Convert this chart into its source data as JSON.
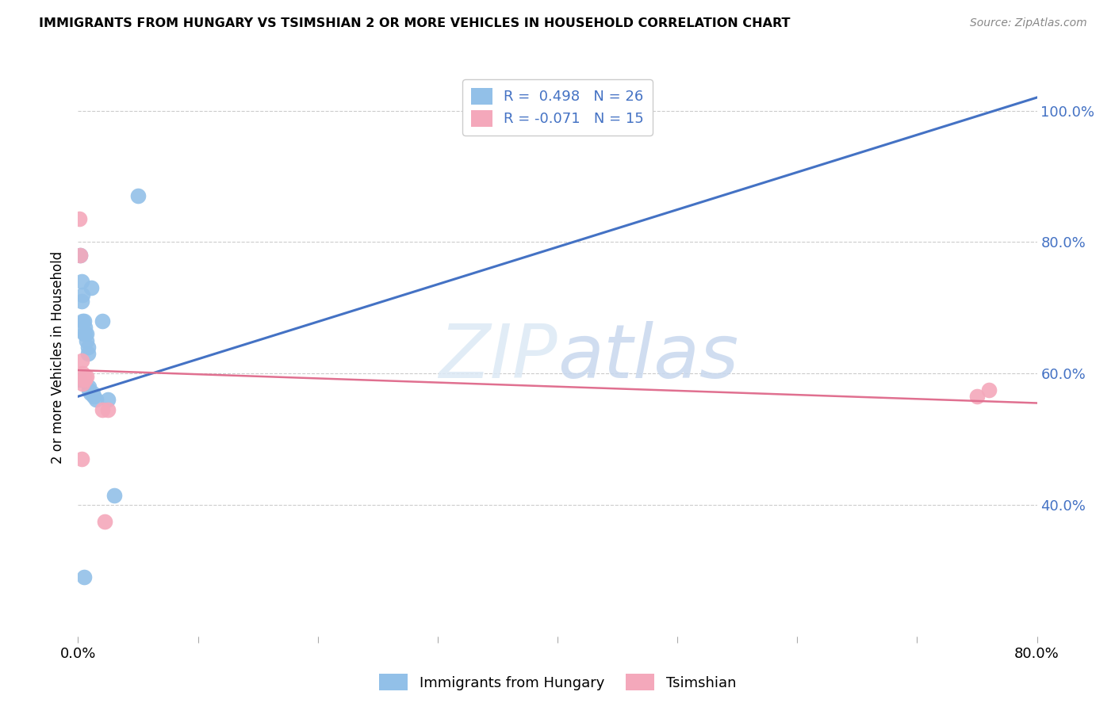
{
  "title": "IMMIGRANTS FROM HUNGARY VS TSIMSHIAN 2 OR MORE VEHICLES IN HOUSEHOLD CORRELATION CHART",
  "source": "Source: ZipAtlas.com",
  "ylabel": "2 or more Vehicles in Household",
  "xlabel": "",
  "xlim": [
    0.0,
    0.8
  ],
  "ylim": [
    0.2,
    1.05
  ],
  "blue_R": 0.498,
  "blue_N": 26,
  "pink_R": -0.071,
  "pink_N": 15,
  "blue_color": "#92c0e8",
  "pink_color": "#f4a8bb",
  "blue_line_color": "#4472c4",
  "pink_line_color": "#e07090",
  "watermark_color": "#dce9f5",
  "blue_x": [
    0.001,
    0.002,
    0.003,
    0.003,
    0.004,
    0.004,
    0.005,
    0.005,
    0.006,
    0.006,
    0.007,
    0.007,
    0.008,
    0.008,
    0.009,
    0.009,
    0.01,
    0.011,
    0.012,
    0.013,
    0.015,
    0.02,
    0.025,
    0.03,
    0.05,
    0.005
  ],
  "blue_y": [
    0.59,
    0.78,
    0.74,
    0.71,
    0.72,
    0.68,
    0.68,
    0.66,
    0.67,
    0.66,
    0.66,
    0.65,
    0.64,
    0.63,
    0.58,
    0.575,
    0.57,
    0.73,
    0.57,
    0.565,
    0.56,
    0.68,
    0.56,
    0.415,
    0.87,
    0.29
  ],
  "pink_x": [
    0.001,
    0.002,
    0.003,
    0.004,
    0.004,
    0.005,
    0.006,
    0.006,
    0.007,
    0.02,
    0.022,
    0.75,
    0.76,
    0.003,
    0.025
  ],
  "pink_y": [
    0.835,
    0.78,
    0.62,
    0.6,
    0.585,
    0.59,
    0.595,
    0.59,
    0.595,
    0.545,
    0.375,
    0.565,
    0.575,
    0.47,
    0.545
  ],
  "ytick_values": [
    0.4,
    0.6,
    0.8,
    1.0
  ],
  "ytick_labels": [
    "40.0%",
    "60.0%",
    "80.0%",
    "100.0%"
  ],
  "xtick_values": [
    0.0,
    0.1,
    0.2,
    0.3,
    0.4,
    0.5,
    0.6,
    0.7,
    0.8
  ],
  "xtick_labels": [
    "0.0%",
    "",
    "",
    "",
    "",
    "",
    "",
    "",
    "80.0%"
  ]
}
